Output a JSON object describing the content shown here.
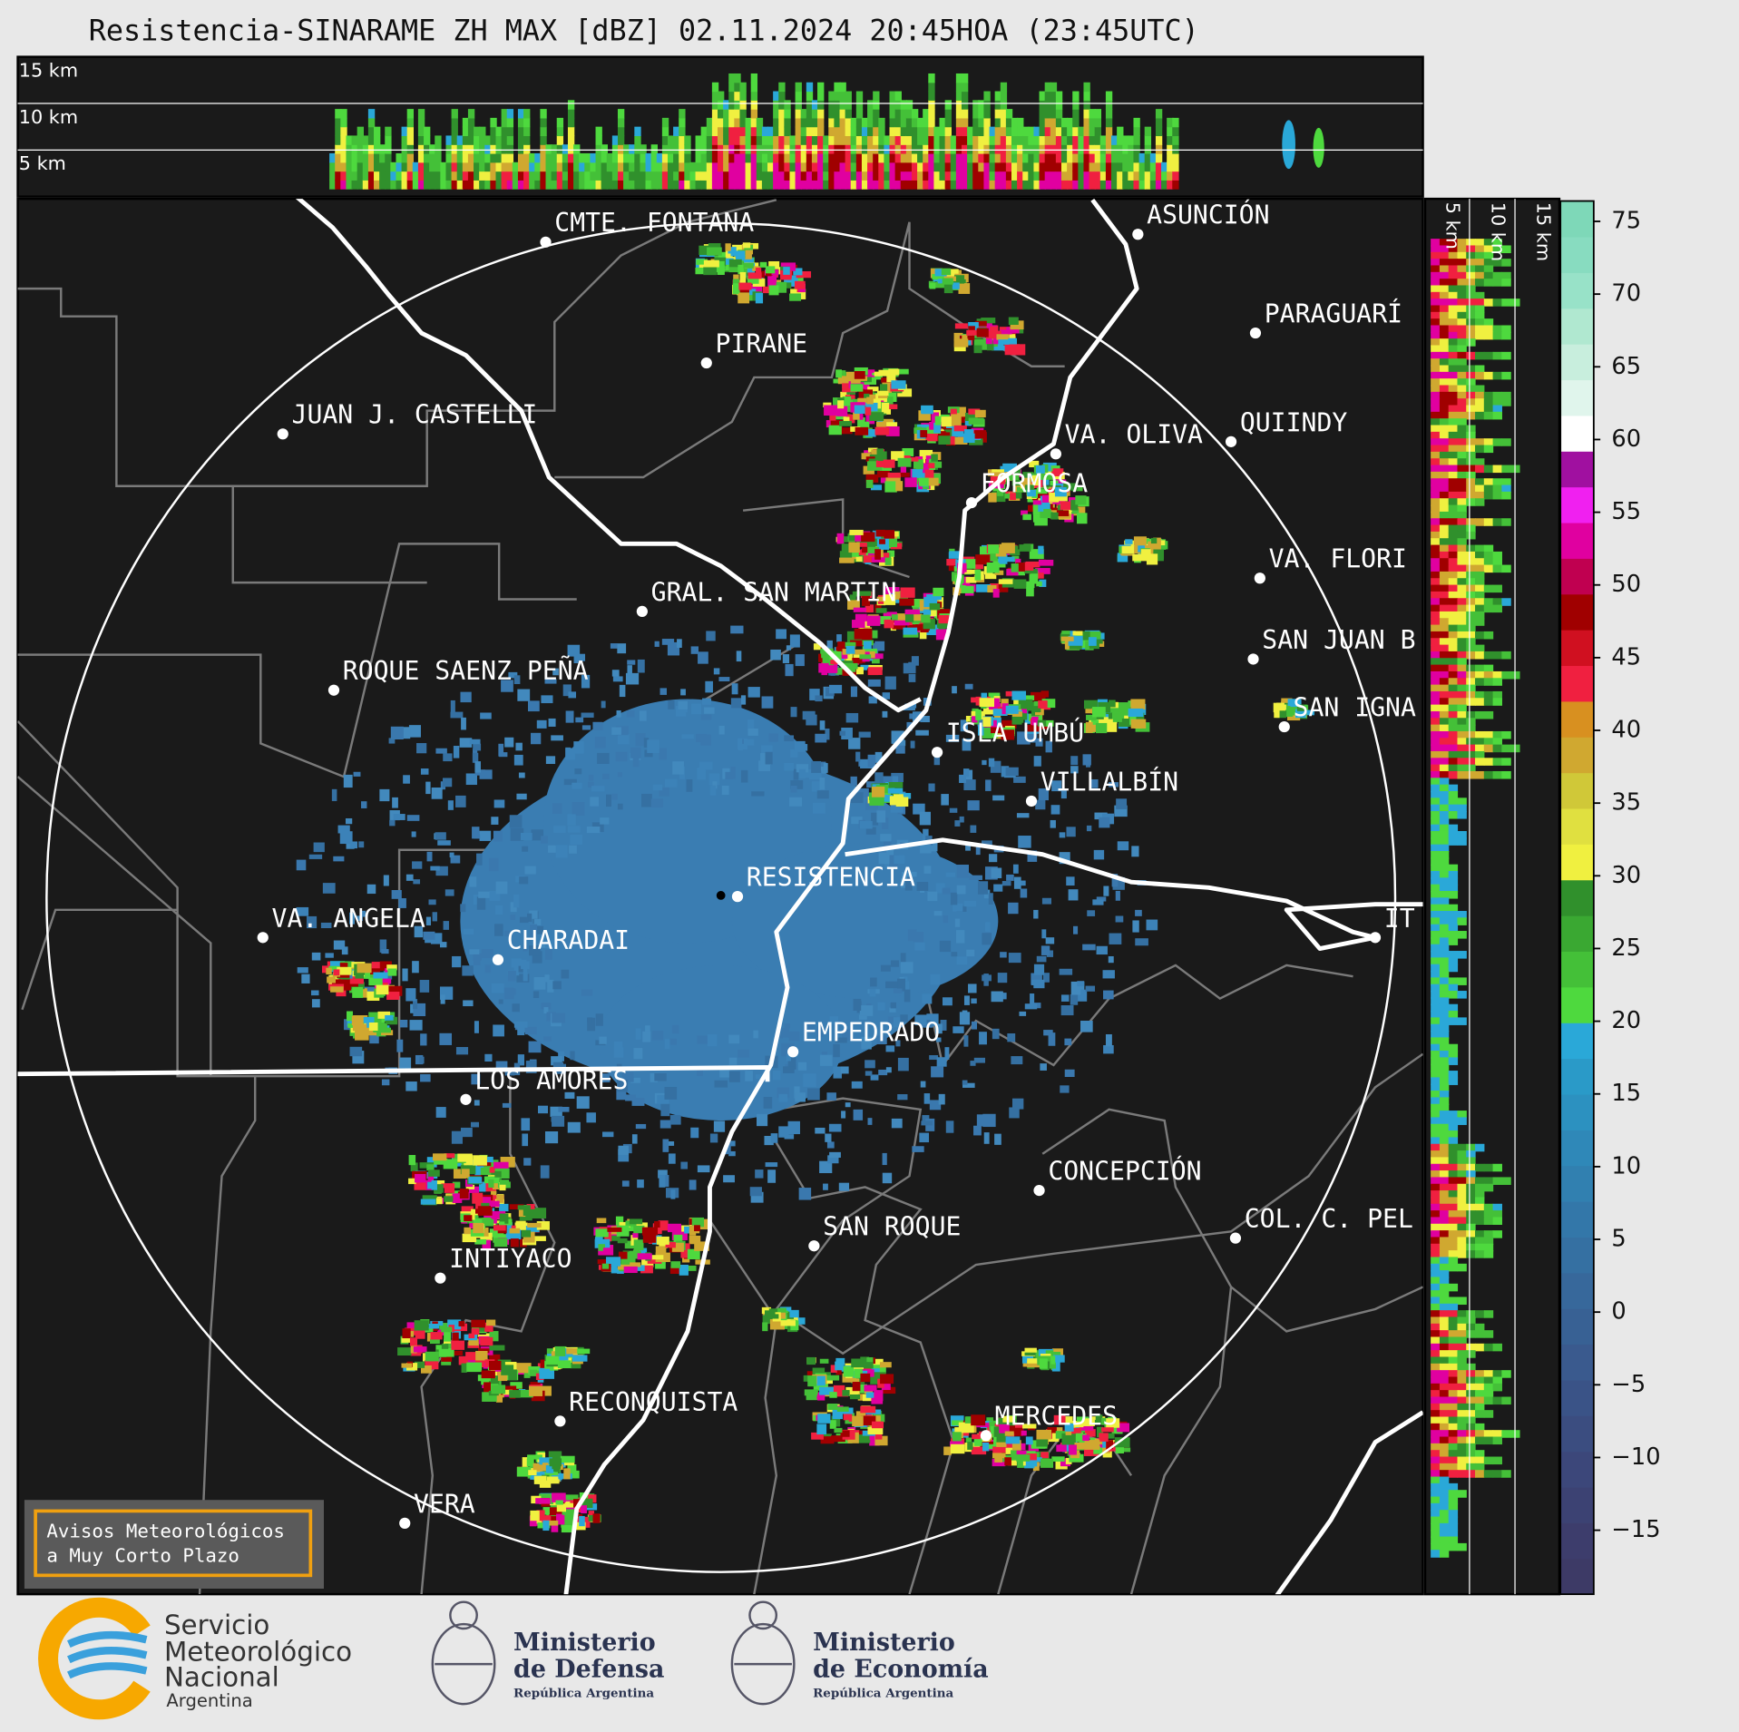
{
  "title": "Resistencia-SINARAME ZH MAX [dBZ] 02.11.2024 20:45HOA (23:45UTC)",
  "top_panel_labels": [
    "15 km",
    "10 km",
    "5 km"
  ],
  "side_panel_labels": [
    "5 km",
    "10 km",
    "15 km"
  ],
  "cities": [
    "CMTE. FONTANA",
    "PIRANE",
    "JUAN J. CASTELLI",
    "ASUNCIÓN",
    "PARAGUARÍ",
    "VA. OLIVA",
    "QUIINDY",
    "FORMOSA",
    "VA. FLORI",
    "GRAL. SAN MARTIN",
    "SAN JUAN B",
    "ROQUE SAENZ PEÑA",
    "SAN IGNA",
    "ISLA UMBÚ",
    "VILLALBÍN",
    "RESISTENCIA",
    "VA. ANGELA",
    "IT",
    "CHARADAI",
    "EMPEDRADO",
    "LOS AMORES",
    "CONCEPCIÓN",
    "SAN ROQUE",
    "COL. C. PEL",
    "INTIYACO",
    "RECONQUISTA",
    "MERCEDES",
    "VERA"
  ],
  "colorbar": {
    "lim": [
      -19.4,
      76.4
    ],
    "ticks": [
      75,
      70,
      65,
      60,
      55,
      50,
      45,
      40,
      35,
      30,
      25,
      20,
      15,
      10,
      5,
      0,
      {
        "value": -5,
        "label": "−5"
      },
      {
        "value": -10,
        "label": "−10"
      },
      {
        "value": -15,
        "label": "−15"
      }
    ],
    "colors": [
      "#3d3a66",
      "#3d3d6c",
      "#3c4273",
      "#3c477a",
      "#3b4d80",
      "#3a5387",
      "#3a5a8e",
      "#386194",
      "#37689b",
      "#3570a2",
      "#3377a9",
      "#3180b0",
      "#2f88b8",
      "#2c91c0",
      "#2a9ac8",
      "#2aa8d8",
      "#4ed93e",
      "#44c038",
      "#3aa832",
      "#30902c",
      "#f0f040",
      "#e0e040",
      "#d0c838",
      "#d0a830",
      "#d89020",
      "#f02040",
      "#d01020",
      "#a00000",
      "#c00050",
      "#e000a0",
      "#f020f0",
      "#a010a0",
      "#ffffff",
      "#e0f5ec",
      "#c8eedd",
      "#b0e8d0",
      "#98e2c8",
      "#88dcc0",
      "#7ed8b8"
    ]
  },
  "notice": [
    "Avisos Meteorológicos",
    "a Muy Corto Plazo"
  ],
  "logos": {
    "smn": [
      "Servicio",
      "Meteorológico",
      "Nacional",
      "Argentina"
    ],
    "defensa": [
      "Ministerio",
      "de Defensa",
      "República Argentina"
    ],
    "economia": [
      "Ministerio",
      "de Economía",
      "República Argentina"
    ]
  }
}
